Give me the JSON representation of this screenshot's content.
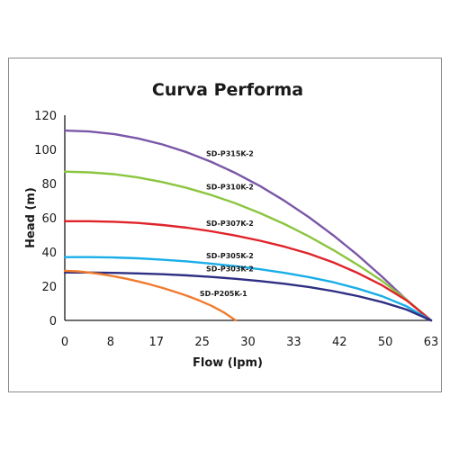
{
  "chart_data": {
    "type": "line",
    "title": "Curva Performa",
    "xlabel": "Flow (lpm)",
    "ylabel": "Head (m)",
    "xlim": [
      0,
      63
    ],
    "ylim": [
      0,
      120
    ],
    "x_ticks": [
      "0",
      "8",
      "17",
      "25",
      "30",
      "33",
      "42",
      "50",
      "63"
    ],
    "y_ticks": [
      "0",
      "20",
      "40",
      "60",
      "80",
      "100",
      "120"
    ],
    "grid": false,
    "series": [
      {
        "name": "SD-P315K-2",
        "color": "#7b57a8",
        "x": [
          0,
          4.2,
          8.4,
          12.6,
          16.8,
          21,
          25.2,
          29.4,
          33.6,
          37.8,
          42,
          46.2,
          50.4,
          54.6,
          58.8,
          63
        ],
        "y": [
          111,
          110.5,
          109,
          106.4,
          102.9,
          98.3,
          92.7,
          86.1,
          78.5,
          69.9,
          60.3,
          49.7,
          38.1,
          25.5,
          11.9,
          0
        ]
      },
      {
        "name": "SD-P310K-2",
        "color": "#8cc53f",
        "x": [
          0,
          4.2,
          8.4,
          12.6,
          16.8,
          21,
          25.2,
          29.4,
          33.6,
          37.8,
          42,
          46.2,
          50.4,
          54.6,
          58.8,
          63
        ],
        "y": [
          87,
          86.6,
          85.5,
          83.6,
          80.9,
          77.5,
          73.3,
          68.4,
          62.7,
          56.3,
          49.1,
          41.1,
          32.4,
          23,
          12,
          0
        ]
      },
      {
        "name": "SD-P307K-2",
        "color": "#e0232a",
        "x": [
          0,
          4.2,
          8.4,
          12.6,
          16.8,
          21,
          25.2,
          29.4,
          33.6,
          37.8,
          42,
          46.2,
          50.4,
          54.6,
          58.8,
          63
        ],
        "y": [
          58,
          58,
          57.7,
          57,
          55.8,
          54.2,
          52.1,
          49.6,
          46.6,
          43.1,
          39,
          33.9,
          27.7,
          20.5,
          11.7,
          0
        ]
      },
      {
        "name": "SD-P305K-2",
        "color": "#1aaee8",
        "x": [
          0,
          4.2,
          8.4,
          12.6,
          16.8,
          21,
          25.2,
          29.4,
          33.6,
          37.8,
          42,
          46.2,
          50.4,
          54.6,
          58.8,
          63
        ],
        "y": [
          37,
          37,
          36.8,
          36.3,
          35.5,
          34.5,
          33.2,
          31.7,
          29.9,
          27.8,
          25.3,
          22.3,
          18.6,
          14.1,
          8.2,
          0
        ]
      },
      {
        "name": "SD-P303K-2",
        "color": "#2e2e83",
        "x": [
          0,
          4.2,
          8.4,
          12.6,
          16.8,
          21,
          25.2,
          29.4,
          33.6,
          37.8,
          42,
          46.2,
          50.4,
          54.6,
          58.8,
          63
        ],
        "y": [
          28,
          28,
          27.8,
          27.5,
          27,
          26.3,
          25.4,
          24.3,
          23,
          21.4,
          19.5,
          17.1,
          14.2,
          10.7,
          6.3,
          0
        ]
      },
      {
        "name": "SD-P205K-1",
        "color": "#f07b2e",
        "x": [
          0,
          2.1,
          4.2,
          6.3,
          8.4,
          10.5,
          12.6,
          14.7,
          16.8,
          18.9,
          21,
          23.1,
          25.2,
          27.3,
          29.4
        ],
        "y": [
          29,
          28.7,
          28,
          27,
          25.8,
          24.4,
          22.8,
          21,
          19,
          16.8,
          14.4,
          11.7,
          8.6,
          4.8,
          0
        ]
      }
    ]
  }
}
